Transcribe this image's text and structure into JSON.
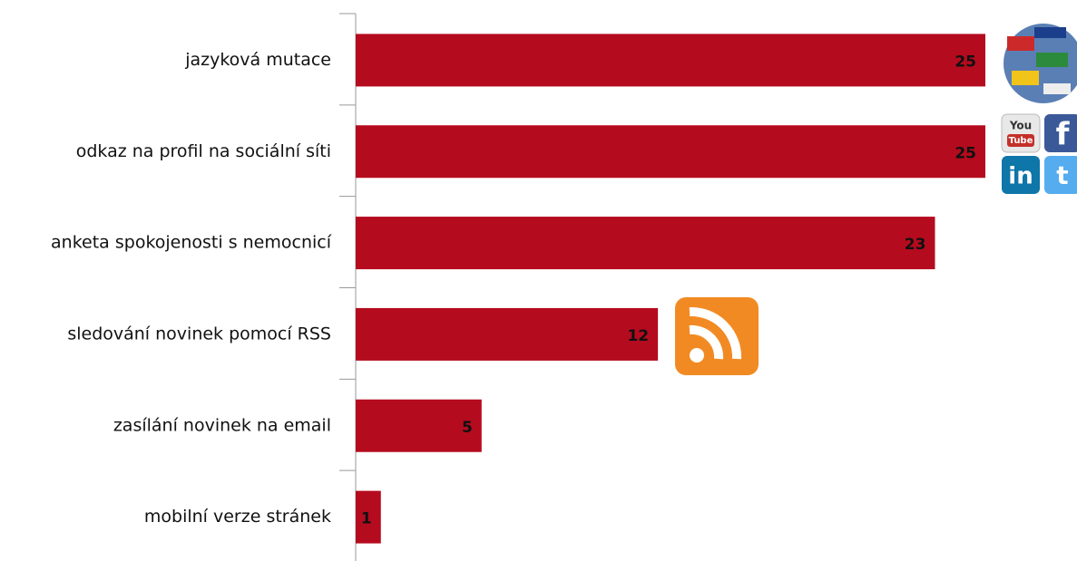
{
  "chart_data": {
    "type": "bar",
    "orientation": "horizontal",
    "categories": [
      "jazyková mutace",
      "odkaz na profil na sociální síti",
      "anketa spokojenosti s nemocnicí",
      "sledování novinek pomocí RSS",
      "zasílání novinek na email",
      "mobilní verze stránek"
    ],
    "values": [
      25,
      25,
      23,
      12,
      5,
      1
    ],
    "color": "#b50b1e"
  }
}
